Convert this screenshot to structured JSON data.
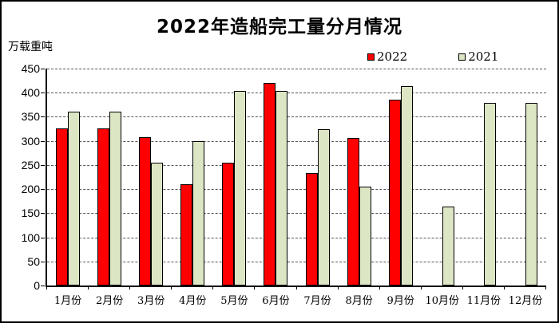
{
  "title": "2022年造船完工量分月情况",
  "unit_label": "万载重吨",
  "legend": [
    {
      "label": "2022",
      "color": "#ff0000"
    },
    {
      "label": "2021",
      "color": "#dce6c4"
    }
  ],
  "colors": {
    "bar_border": "#000000",
    "axis": "#000000",
    "gridline": "#555555",
    "background": "#ffffff"
  },
  "chart_data": {
    "type": "bar",
    "title": "2022年造船完工量分月情况",
    "xlabel": "",
    "ylabel": "万载重吨",
    "categories": [
      "1月份",
      "2月份",
      "3月份",
      "4月份",
      "5月份",
      "6月份",
      "7月份",
      "8月份",
      "9月份",
      "10月份",
      "11月份",
      "12月份"
    ],
    "series": [
      {
        "name": "2022",
        "color": "#ff0000",
        "values": [
          326,
          326,
          308,
          210,
          255,
          420,
          233,
          306,
          386,
          null,
          null,
          null
        ]
      },
      {
        "name": "2021",
        "color": "#dce6c4",
        "values": [
          360,
          360,
          255,
          300,
          403,
          403,
          324,
          205,
          413,
          164,
          379,
          379
        ]
      }
    ],
    "ylim": [
      0,
      450
    ],
    "ytick_step": 50,
    "grid": true,
    "legend_position": "top-right"
  }
}
